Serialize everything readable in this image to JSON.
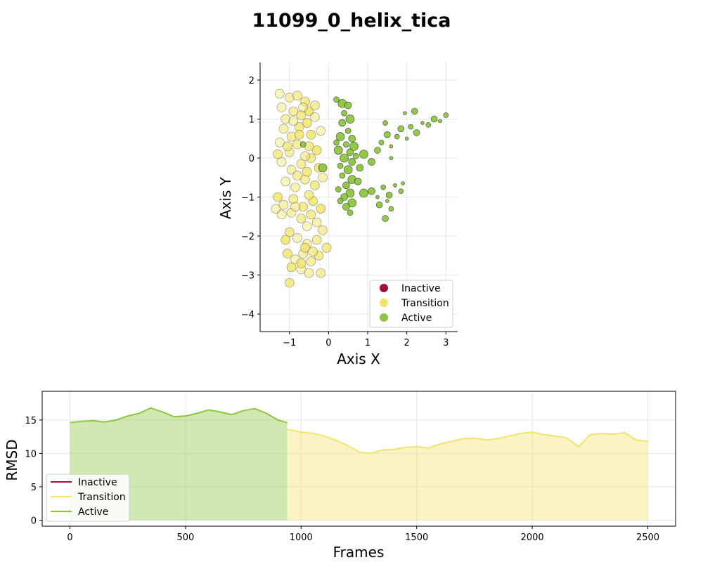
{
  "title": "11099_0_helix_tica",
  "colors": {
    "inactive": "#a50f43",
    "transition": "#f2e46b",
    "active": "#8dc63f"
  },
  "chart_data": [
    {
      "type": "scatter",
      "xlabel": "Axis X",
      "ylabel": "Axis Y",
      "xlim": [
        -1.75,
        3.3
      ],
      "ylim": [
        -4.45,
        2.45
      ],
      "xticks": [
        "−1",
        "0",
        "1",
        "2",
        "3"
      ],
      "xtick_values": [
        -1,
        0,
        1,
        2,
        3
      ],
      "yticks": [
        "−4",
        "−3",
        "−2",
        "−1",
        "0",
        "1",
        "2"
      ],
      "ytick_values": [
        -4,
        -3,
        -2,
        -1,
        0,
        1,
        2
      ],
      "grid": true,
      "legend": {
        "placement": "lower-right",
        "entries": [
          "Inactive",
          "Transition",
          "Active"
        ]
      },
      "series": [
        {
          "name": "Transition",
          "points": [
            [
              -1.25,
              1.65
            ],
            [
              -1.0,
              1.55
            ],
            [
              -0.8,
              1.6
            ],
            [
              -0.6,
              1.45
            ],
            [
              -0.5,
              1.2
            ],
            [
              -1.2,
              1.3
            ],
            [
              -1.1,
              1.0
            ],
            [
              -0.9,
              1.2
            ],
            [
              -0.7,
              1.1
            ],
            [
              -0.55,
              0.9
            ],
            [
              -0.35,
              1.05
            ],
            [
              -1.15,
              0.75
            ],
            [
              -0.95,
              0.55
            ],
            [
              -0.75,
              0.8
            ],
            [
              -0.45,
              0.6
            ],
            [
              -1.25,
              0.4
            ],
            [
              -1.0,
              0.15
            ],
            [
              -0.8,
              0.35
            ],
            [
              -0.5,
              0.3
            ],
            [
              -0.3,
              0.2
            ],
            [
              -1.2,
              -0.1
            ],
            [
              -0.95,
              -0.3
            ],
            [
              -0.7,
              -0.15
            ],
            [
              -0.45,
              0.0
            ],
            [
              -0.25,
              -0.25
            ],
            [
              -1.1,
              -0.6
            ],
            [
              -0.85,
              -0.75
            ],
            [
              -0.6,
              -0.55
            ],
            [
              -0.35,
              -0.7
            ],
            [
              -1.3,
              -1.0
            ],
            [
              -1.35,
              -1.3
            ],
            [
              -1.15,
              -1.2
            ],
            [
              -0.9,
              -1.05
            ],
            [
              -0.65,
              -1.25
            ],
            [
              -0.4,
              -1.1
            ],
            [
              -1.2,
              -1.45
            ],
            [
              -0.95,
              -1.4
            ],
            [
              -0.7,
              -1.55
            ],
            [
              -0.45,
              -1.45
            ],
            [
              -0.2,
              -1.3
            ],
            [
              -0.55,
              -1.75
            ],
            [
              -0.3,
              -1.65
            ],
            [
              -0.15,
              -1.85
            ],
            [
              -1.0,
              -1.9
            ],
            [
              -1.1,
              -2.1
            ],
            [
              -0.8,
              -2.05
            ],
            [
              -0.55,
              -2.2
            ],
            [
              -0.3,
              -2.1
            ],
            [
              -0.05,
              -2.3
            ],
            [
              -1.05,
              -2.45
            ],
            [
              -0.85,
              -2.6
            ],
            [
              -0.65,
              -2.45
            ],
            [
              -0.45,
              -2.65
            ],
            [
              -0.25,
              -2.5
            ],
            [
              -0.95,
              -2.8
            ],
            [
              -0.7,
              -2.85
            ],
            [
              -0.5,
              -2.95
            ],
            [
              -0.2,
              -2.95
            ],
            [
              -1.0,
              -3.2
            ],
            [
              -0.6,
              -2.3
            ],
            [
              -0.9,
              0.95
            ],
            [
              -0.6,
              0.05
            ],
            [
              -0.8,
              -0.45
            ],
            [
              -0.5,
              -0.95
            ],
            [
              -0.75,
              0.6
            ],
            [
              -0.65,
              1.3
            ],
            [
              -0.85,
              -1.25
            ],
            [
              -0.4,
              -2.4
            ],
            [
              -1.05,
              0.3
            ],
            [
              -0.55,
              -0.35
            ],
            [
              -0.2,
              0.7
            ],
            [
              -0.15,
              -0.5
            ],
            [
              -0.35,
              1.35
            ],
            [
              -1.3,
              0.1
            ],
            [
              -0.7,
              -2.7
            ]
          ]
        },
        {
          "name": "Active",
          "points": [
            [
              0.2,
              1.5
            ],
            [
              0.35,
              1.4
            ],
            [
              0.5,
              1.35
            ],
            [
              0.4,
              1.15
            ],
            [
              0.55,
              1.0
            ],
            [
              0.35,
              0.9
            ],
            [
              0.5,
              0.7
            ],
            [
              0.3,
              0.55
            ],
            [
              0.6,
              0.5
            ],
            [
              0.45,
              0.35
            ],
            [
              0.25,
              0.2
            ],
            [
              0.55,
              0.15
            ],
            [
              0.7,
              0.05
            ],
            [
              0.4,
              0.0
            ],
            [
              0.6,
              -0.1
            ],
            [
              0.3,
              -0.2
            ],
            [
              0.5,
              -0.3
            ],
            [
              0.8,
              -0.25
            ],
            [
              0.35,
              -0.45
            ],
            [
              0.6,
              -0.55
            ],
            [
              0.45,
              -0.7
            ],
            [
              0.25,
              -0.8
            ],
            [
              0.55,
              -0.9
            ],
            [
              0.4,
              -1.0
            ],
            [
              0.3,
              -1.1
            ],
            [
              0.6,
              -1.15
            ],
            [
              0.45,
              -1.25
            ],
            [
              0.55,
              -1.4
            ],
            [
              0.9,
              -0.9
            ],
            [
              1.1,
              -0.85
            ],
            [
              1.25,
              -1.0
            ],
            [
              1.4,
              -0.75
            ],
            [
              1.55,
              -0.95
            ],
            [
              1.7,
              -0.7
            ],
            [
              1.85,
              -0.85
            ],
            [
              1.3,
              -1.2
            ],
            [
              1.5,
              -1.1
            ],
            [
              1.6,
              -1.3
            ],
            [
              1.45,
              -1.55
            ],
            [
              1.9,
              -0.65
            ],
            [
              1.35,
              0.4
            ],
            [
              1.5,
              0.6
            ],
            [
              1.6,
              0.3
            ],
            [
              1.75,
              0.55
            ],
            [
              1.85,
              0.75
            ],
            [
              2.0,
              0.5
            ],
            [
              2.1,
              0.8
            ],
            [
              2.25,
              0.65
            ],
            [
              2.4,
              0.9
            ],
            [
              2.55,
              0.85
            ],
            [
              2.7,
              1.0
            ],
            [
              2.85,
              0.95
            ],
            [
              3.0,
              1.1
            ],
            [
              2.2,
              1.2
            ],
            [
              1.95,
              1.15
            ],
            [
              1.45,
              0.9
            ],
            [
              1.25,
              0.2
            ],
            [
              1.6,
              0.0
            ],
            [
              0.9,
              0.1
            ],
            [
              1.1,
              -0.1
            ],
            [
              -0.65,
              0.35
            ],
            [
              -0.15,
              -0.25
            ],
            [
              0.75,
              -0.6
            ],
            [
              0.2,
              0.4
            ],
            [
              0.65,
              0.3
            ]
          ]
        }
      ]
    },
    {
      "type": "line",
      "xlabel": "Frames",
      "ylabel": "RMSD",
      "xlim": [
        -120,
        2620
      ],
      "ylim": [
        -0.9,
        19.3
      ],
      "xticks": [
        "0",
        "500",
        "1000",
        "1500",
        "2000",
        "2500"
      ],
      "xtick_values": [
        0,
        500,
        1000,
        1500,
        2000,
        2500
      ],
      "yticks": [
        "0",
        "5",
        "10",
        "15"
      ],
      "ytick_values": [
        0,
        5,
        10,
        15
      ],
      "grid": true,
      "legend": {
        "placement": "lower-left",
        "entries": [
          "Inactive",
          "Transition",
          "Active"
        ]
      },
      "series": [
        {
          "name": "Active",
          "x": [
            0,
            50,
            100,
            150,
            200,
            250,
            300,
            350,
            400,
            450,
            500,
            550,
            600,
            650,
            700,
            750,
            800,
            850,
            900,
            940
          ],
          "values": [
            14.6,
            14.8,
            14.9,
            14.7,
            15.0,
            15.6,
            16.0,
            16.8,
            16.2,
            15.5,
            15.6,
            16.0,
            16.5,
            16.2,
            15.8,
            16.4,
            16.7,
            16.0,
            15.0,
            14.6
          ]
        },
        {
          "name": "Transition",
          "x": [
            940,
            1000,
            1050,
            1100,
            1150,
            1200,
            1250,
            1300,
            1350,
            1400,
            1450,
            1500,
            1550,
            1600,
            1650,
            1700,
            1750,
            1800,
            1850,
            1900,
            1950,
            2000,
            2050,
            2100,
            2150,
            2200,
            2250,
            2300,
            2350,
            2400,
            2450,
            2500
          ],
          "values": [
            13.6,
            13.2,
            13.0,
            12.6,
            12.0,
            11.2,
            10.2,
            10.0,
            10.5,
            10.6,
            10.9,
            11.0,
            10.8,
            11.4,
            11.8,
            12.2,
            12.3,
            12.0,
            12.2,
            12.6,
            13.0,
            13.2,
            12.8,
            12.6,
            12.3,
            11.0,
            12.8,
            13.0,
            12.9,
            13.1,
            12.0,
            11.8
          ]
        }
      ]
    }
  ]
}
